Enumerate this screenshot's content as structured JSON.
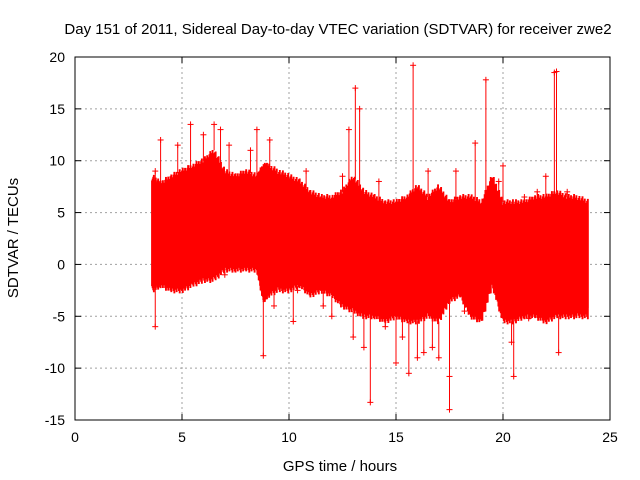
{
  "chart_data": {
    "type": "scatter",
    "title": "Day 151 of 2011, Sidereal Day-to-day VTEC variation (SDTVAR) for receiver zwe2",
    "xlabel": "GPS time / hours",
    "ylabel": "SDTVAR / TECUs",
    "xlim": [
      0,
      25
    ],
    "ylim": [
      -15,
      20
    ],
    "xticks": [
      0,
      5,
      10,
      15,
      20,
      25
    ],
    "yticks": [
      -15,
      -10,
      -5,
      0,
      5,
      10,
      15,
      20
    ],
    "grid": true,
    "series": [
      {
        "name": "SDTVAR",
        "color": "#ff0000",
        "marker": "plus",
        "envelope": {
          "x": [
            3.6,
            4.0,
            4.5,
            5.0,
            5.5,
            6.0,
            6.5,
            7.0,
            7.5,
            8.0,
            8.5,
            8.8,
            9.0,
            9.5,
            10.0,
            10.5,
            11.0,
            11.5,
            12.0,
            12.5,
            13.0,
            13.5,
            14.0,
            14.5,
            15.0,
            15.5,
            16.0,
            16.5,
            17.0,
            17.5,
            18.0,
            18.5,
            19.0,
            19.5,
            20.0,
            20.5,
            21.0,
            21.5,
            22.0,
            22.5,
            23.0,
            23.5,
            24.0
          ],
          "upper": [
            8.5,
            7.8,
            8.5,
            9.0,
            9.5,
            10.0,
            11.0,
            9.0,
            8.5,
            9.0,
            8.5,
            9.5,
            9.5,
            9.0,
            8.5,
            8.0,
            7.0,
            6.5,
            6.5,
            7.0,
            8.5,
            7.0,
            6.5,
            6.0,
            6.0,
            6.5,
            7.5,
            6.5,
            7.5,
            6.0,
            6.5,
            6.5,
            6.0,
            8.5,
            6.0,
            6.0,
            6.0,
            6.5,
            6.5,
            7.0,
            6.5,
            6.5,
            6.0
          ],
          "lower": [
            -2.5,
            -2.0,
            -2.5,
            -2.5,
            -2.0,
            -1.5,
            -1.5,
            -0.5,
            -0.5,
            -0.5,
            -0.5,
            -3.5,
            -3.0,
            -2.5,
            -2.5,
            -2.0,
            -3.0,
            -2.5,
            -3.0,
            -4.0,
            -4.5,
            -5.0,
            -5.0,
            -5.5,
            -5.0,
            -5.5,
            -5.5,
            -5.0,
            -5.5,
            -3.5,
            -3.0,
            -5.0,
            -5.5,
            -2.0,
            -5.5,
            -5.5,
            -5.0,
            -5.0,
            -5.5,
            -5.0,
            -5.0,
            -5.0,
            -5.0
          ]
        },
        "points": [
          {
            "x": 3.75,
            "y": 9.0
          },
          {
            "x": 3.75,
            "y": -6.0
          },
          {
            "x": 4.0,
            "y": 12.0
          },
          {
            "x": 4.8,
            "y": 11.5
          },
          {
            "x": 5.0,
            "y": -2.0
          },
          {
            "x": 5.4,
            "y": 13.5
          },
          {
            "x": 6.0,
            "y": 12.5
          },
          {
            "x": 6.5,
            "y": 13.5
          },
          {
            "x": 6.8,
            "y": 13.0
          },
          {
            "x": 7.0,
            "y": -1.0
          },
          {
            "x": 7.2,
            "y": 11.5
          },
          {
            "x": 8.2,
            "y": 11.0
          },
          {
            "x": 8.5,
            "y": 13.0
          },
          {
            "x": 8.8,
            "y": -8.8
          },
          {
            "x": 9.1,
            "y": 12.0
          },
          {
            "x": 9.3,
            "y": -4.0
          },
          {
            "x": 10.2,
            "y": -5.5
          },
          {
            "x": 10.4,
            "y": -2.5
          },
          {
            "x": 10.8,
            "y": 9.0
          },
          {
            "x": 11.6,
            "y": -4.0
          },
          {
            "x": 12.0,
            "y": -5.0
          },
          {
            "x": 12.5,
            "y": 8.5
          },
          {
            "x": 12.8,
            "y": 13.0
          },
          {
            "x": 13.0,
            "y": -7.0
          },
          {
            "x": 13.1,
            "y": 17.0
          },
          {
            "x": 13.3,
            "y": 15.0
          },
          {
            "x": 13.5,
            "y": -8.0
          },
          {
            "x": 13.8,
            "y": -13.3
          },
          {
            "x": 14.2,
            "y": 8.0
          },
          {
            "x": 14.5,
            "y": -6.0
          },
          {
            "x": 15.0,
            "y": -9.5
          },
          {
            "x": 15.3,
            "y": -7.0
          },
          {
            "x": 15.6,
            "y": -10.5
          },
          {
            "x": 15.8,
            "y": 19.2
          },
          {
            "x": 16.0,
            "y": -9.0
          },
          {
            "x": 16.3,
            "y": -8.5
          },
          {
            "x": 16.5,
            "y": 9.0
          },
          {
            "x": 16.7,
            "y": -8.0
          },
          {
            "x": 17.0,
            "y": -9.0
          },
          {
            "x": 17.5,
            "y": -14.0
          },
          {
            "x": 17.5,
            "y": -10.8
          },
          {
            "x": 17.8,
            "y": 9.0
          },
          {
            "x": 18.2,
            "y": -4.5
          },
          {
            "x": 18.7,
            "y": 11.7
          },
          {
            "x": 19.2,
            "y": 17.8
          },
          {
            "x": 19.8,
            "y": 8.0
          },
          {
            "x": 20.0,
            "y": 9.5
          },
          {
            "x": 20.4,
            "y": -7.5
          },
          {
            "x": 20.5,
            "y": -10.8
          },
          {
            "x": 21.0,
            "y": 6.5
          },
          {
            "x": 21.2,
            "y": -5.2
          },
          {
            "x": 21.6,
            "y": 7.0
          },
          {
            "x": 22.0,
            "y": 8.5
          },
          {
            "x": 22.4,
            "y": 18.5
          },
          {
            "x": 22.5,
            "y": 18.6
          },
          {
            "x": 22.6,
            "y": -8.5
          },
          {
            "x": 23.0,
            "y": 7.0
          },
          {
            "x": 23.8,
            "y": -1.5
          }
        ]
      }
    ]
  }
}
